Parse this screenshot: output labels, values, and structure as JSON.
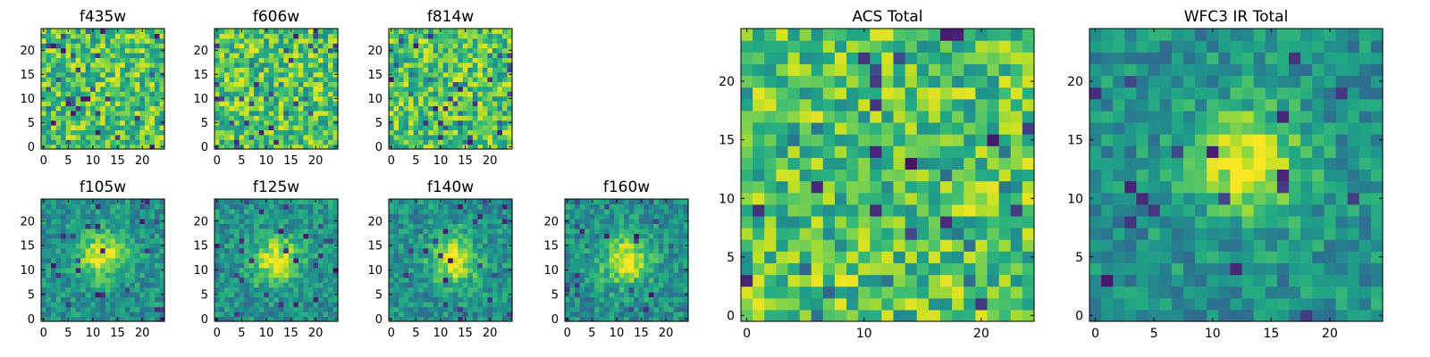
{
  "figure": {
    "colormap": "viridis",
    "background": "#ffffff"
  },
  "chart_data": [
    {
      "type": "heatmap",
      "title": "f435w",
      "grid_size": [
        25,
        25
      ],
      "xlim": [
        -0.5,
        24.5
      ],
      "ylim": [
        -0.5,
        24.5
      ],
      "xticks": [
        0,
        5,
        10,
        15,
        20
      ],
      "yticks": [
        0,
        5,
        10,
        15,
        20
      ],
      "pattern": "noise",
      "seed": 11
    },
    {
      "type": "heatmap",
      "title": "f606w",
      "grid_size": [
        25,
        25
      ],
      "xlim": [
        -0.5,
        24.5
      ],
      "ylim": [
        -0.5,
        24.5
      ],
      "xticks": [
        0,
        5,
        10,
        15,
        20
      ],
      "yticks": [
        0,
        5,
        10,
        15,
        20
      ],
      "pattern": "noise",
      "seed": 23
    },
    {
      "type": "heatmap",
      "title": "f814w",
      "grid_size": [
        25,
        25
      ],
      "xlim": [
        -0.5,
        24.5
      ],
      "ylim": [
        -0.5,
        24.5
      ],
      "xticks": [
        0,
        5,
        10,
        15,
        20
      ],
      "yticks": [
        0,
        5,
        10,
        15,
        20
      ],
      "pattern": "noise",
      "seed": 37
    },
    {
      "type": "heatmap",
      "title": "f105w",
      "grid_size": [
        25,
        25
      ],
      "xlim": [
        -0.5,
        24.5
      ],
      "ylim": [
        -0.5,
        24.5
      ],
      "xticks": [
        0,
        5,
        10,
        15,
        20
      ],
      "yticks": [
        0,
        5,
        10,
        15,
        20
      ],
      "pattern": "source",
      "source_center": [
        12,
        13
      ],
      "seed": 41
    },
    {
      "type": "heatmap",
      "title": "f125w",
      "grid_size": [
        25,
        25
      ],
      "xlim": [
        -0.5,
        24.5
      ],
      "ylim": [
        -0.5,
        24.5
      ],
      "xticks": [
        0,
        5,
        10,
        15,
        20
      ],
      "yticks": [
        0,
        5,
        10,
        15,
        20
      ],
      "pattern": "source",
      "source_center": [
        12,
        12
      ],
      "seed": 53
    },
    {
      "type": "heatmap",
      "title": "f140w",
      "grid_size": [
        25,
        25
      ],
      "xlim": [
        -0.5,
        24.5
      ],
      "ylim": [
        -0.5,
        24.5
      ],
      "xticks": [
        0,
        5,
        10,
        15,
        20
      ],
      "yticks": [
        0,
        5,
        10,
        15,
        20
      ],
      "pattern": "source",
      "source_center": [
        13,
        12
      ],
      "seed": 67
    },
    {
      "type": "heatmap",
      "title": "f160w",
      "grid_size": [
        25,
        25
      ],
      "xlim": [
        -0.5,
        24.5
      ],
      "ylim": [
        -0.5,
        24.5
      ],
      "xticks": [
        0,
        5,
        10,
        15,
        20
      ],
      "yticks": [
        0,
        5,
        10,
        15,
        20
      ],
      "pattern": "source",
      "source_center": [
        12,
        12
      ],
      "seed": 79
    },
    {
      "type": "heatmap",
      "title": "ACS Total",
      "grid_size": [
        25,
        25
      ],
      "xlim": [
        -0.5,
        24.5
      ],
      "ylim": [
        -0.5,
        24.5
      ],
      "xticks": [
        0,
        10,
        20
      ],
      "yticks": [
        0,
        5,
        10,
        15,
        20
      ],
      "pattern": "noise",
      "seed": 97
    },
    {
      "type": "heatmap",
      "title": "WFC3 IR Total",
      "grid_size": [
        25,
        25
      ],
      "xlim": [
        -0.5,
        24.5
      ],
      "ylim": [
        -0.5,
        24.5
      ],
      "xticks": [
        0,
        5,
        10,
        15,
        20
      ],
      "yticks": [
        0,
        5,
        10,
        15,
        20
      ],
      "pattern": "source",
      "source_center": [
        13,
        13
      ],
      "seed": 101
    }
  ]
}
